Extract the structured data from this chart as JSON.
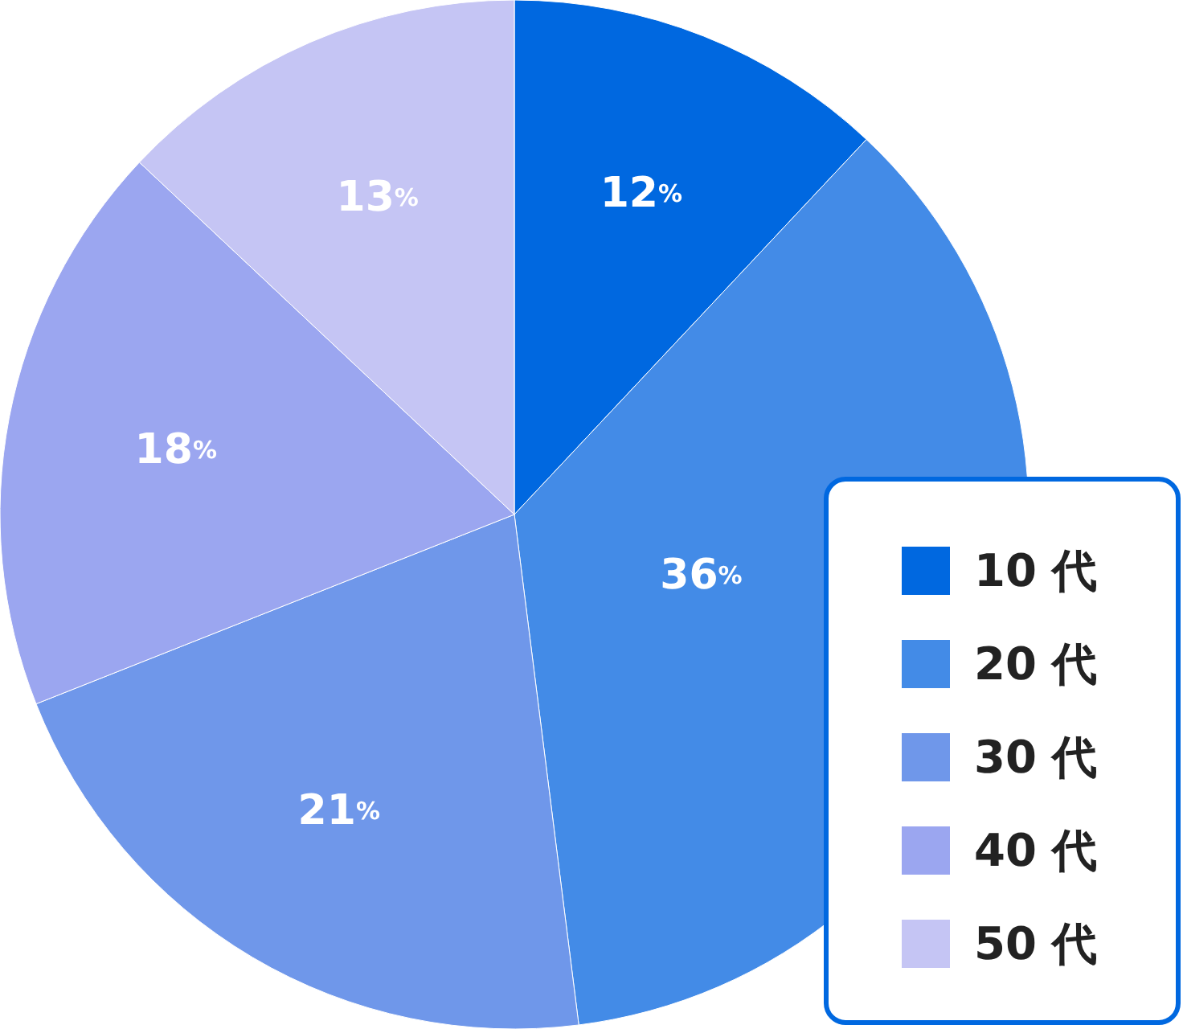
{
  "chart_data": {
    "type": "pie",
    "categories": [
      "10 代",
      "20 代",
      "30 代",
      "40 代",
      "50 代"
    ],
    "values": [
      12,
      36,
      21,
      18,
      13
    ],
    "colors": [
      "#0068e0",
      "#438be7",
      "#6f97ea",
      "#9ba6f0",
      "#c5c5f4"
    ],
    "value_labels": [
      "12%",
      "36%",
      "21%",
      "18%",
      "13%"
    ],
    "legend": "bottom right"
  }
}
